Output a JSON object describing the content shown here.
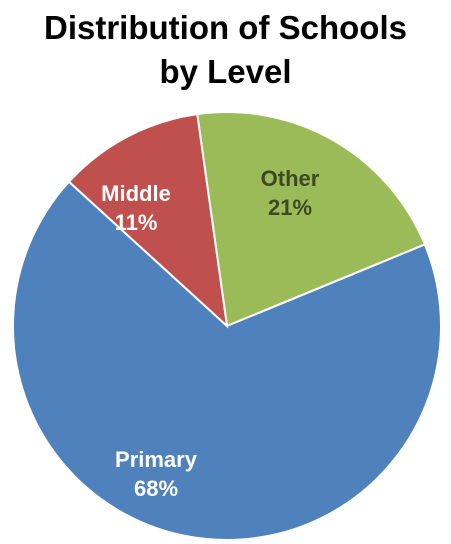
{
  "chart_data": {
    "type": "pie",
    "title_lines": [
      "Distribution of Schools",
      "by Level"
    ],
    "slices": [
      {
        "label": "Other",
        "value": 21,
        "display": "21%",
        "color": "#9BBB59",
        "label_color": "#3B4A22"
      },
      {
        "label": "Primary",
        "value": 68,
        "display": "68%",
        "color": "#4F81BD",
        "label_color": "#FFFFFF"
      },
      {
        "label": "Middle",
        "value": 11,
        "display": "11%",
        "color": "#C0504D",
        "label_color": "#FFFFFF"
      }
    ]
  }
}
